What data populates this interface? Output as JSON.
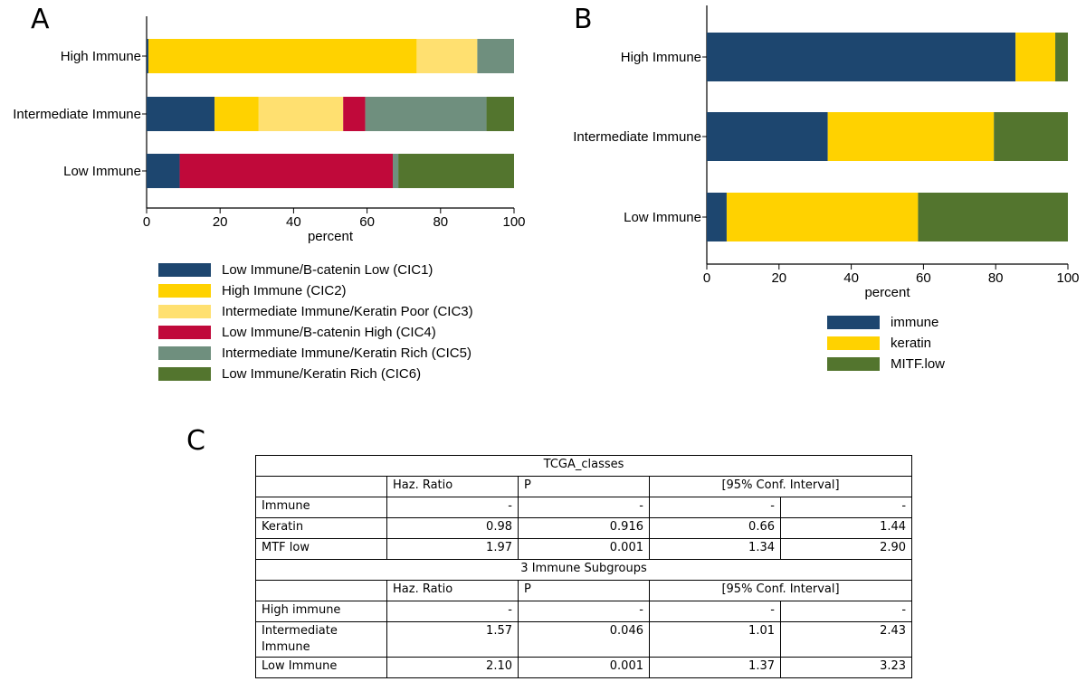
{
  "panels": {
    "a": "A",
    "b": "B",
    "c": "C"
  },
  "chart_data": [
    {
      "type": "bar",
      "orientation": "horizontal",
      "stacked": true,
      "categories": [
        "High Immune",
        "Intermediate Immune",
        "Low Immune"
      ],
      "xlabel": "percent",
      "xlim": [
        0,
        100
      ],
      "xticks": [
        "0",
        "20",
        "40",
        "60",
        "80",
        "100"
      ],
      "legend_position": "bottom",
      "series": [
        {
          "name": "Low Immune/B-catenin Low (CIC1)",
          "color": "#1d466f",
          "values": [
            0.5,
            18.5,
            9
          ]
        },
        {
          "name": "High Immune (CIC2)",
          "color": "#ffd200",
          "values": [
            73,
            12,
            0
          ]
        },
        {
          "name": "Intermediate Immune/Keratin Poor (CIC3)",
          "color": "#ffe070",
          "values": [
            16.5,
            23,
            0
          ]
        },
        {
          "name": "Low Immune/B-catenin High (CIC4)",
          "color": "#c0093a",
          "values": [
            0,
            6,
            58
          ]
        },
        {
          "name": "Intermediate Immune/Keratin Rich (CIC5)",
          "color": "#6f8f7e",
          "values": [
            10,
            33,
            1.5
          ]
        },
        {
          "name": "Low Immune/Keratin Rich (CIC6)",
          "color": "#53752e",
          "values": [
            0,
            7.5,
            31.5
          ]
        }
      ]
    },
    {
      "type": "bar",
      "orientation": "horizontal",
      "stacked": true,
      "categories": [
        "High Immune",
        "Intermediate Immune",
        "Low Immune"
      ],
      "xlabel": "percent",
      "xlim": [
        0,
        100
      ],
      "xticks": [
        "0",
        "20",
        "40",
        "60",
        "80",
        "100"
      ],
      "legend_position": "bottom",
      "series": [
        {
          "name": "immune",
          "color": "#1d466f",
          "values": [
            85.5,
            33.5,
            5.5
          ]
        },
        {
          "name": "keratin",
          "color": "#ffd200",
          "values": [
            11,
            46,
            53
          ]
        },
        {
          "name": "MITF.low",
          "color": "#53752e",
          "values": [
            3.5,
            20.5,
            41.5
          ]
        }
      ]
    }
  ],
  "table": {
    "title1": "TCGA_classes",
    "title2": "3 Immune Subgroups",
    "headers": {
      "hr": "Haz. Ratio",
      "p": "P",
      "ci": "[95% Conf. Interval]"
    },
    "group1": [
      {
        "label": "Immune",
        "hr": "-",
        "p": "-",
        "lo": "-",
        "hi": "-"
      },
      {
        "label": "Keratin",
        "hr": "0.98",
        "p": "0.916",
        "lo": "0.66",
        "hi": "1.44"
      },
      {
        "label": "MTF low",
        "hr": "1.97",
        "p": "0.001",
        "lo": "1.34",
        "hi": "2.90"
      }
    ],
    "group2": [
      {
        "label": "High immune",
        "hr": "-",
        "p": "-",
        "lo": "-",
        "hi": "-"
      },
      {
        "label": "Intermediate Immune",
        "hr": "1.57",
        "p": "0.046",
        "lo": "1.01",
        "hi": "2.43"
      },
      {
        "label": "Low Immune",
        "hr": "2.10",
        "p": "0.001",
        "lo": "1.37",
        "hi": "3.23"
      }
    ]
  }
}
